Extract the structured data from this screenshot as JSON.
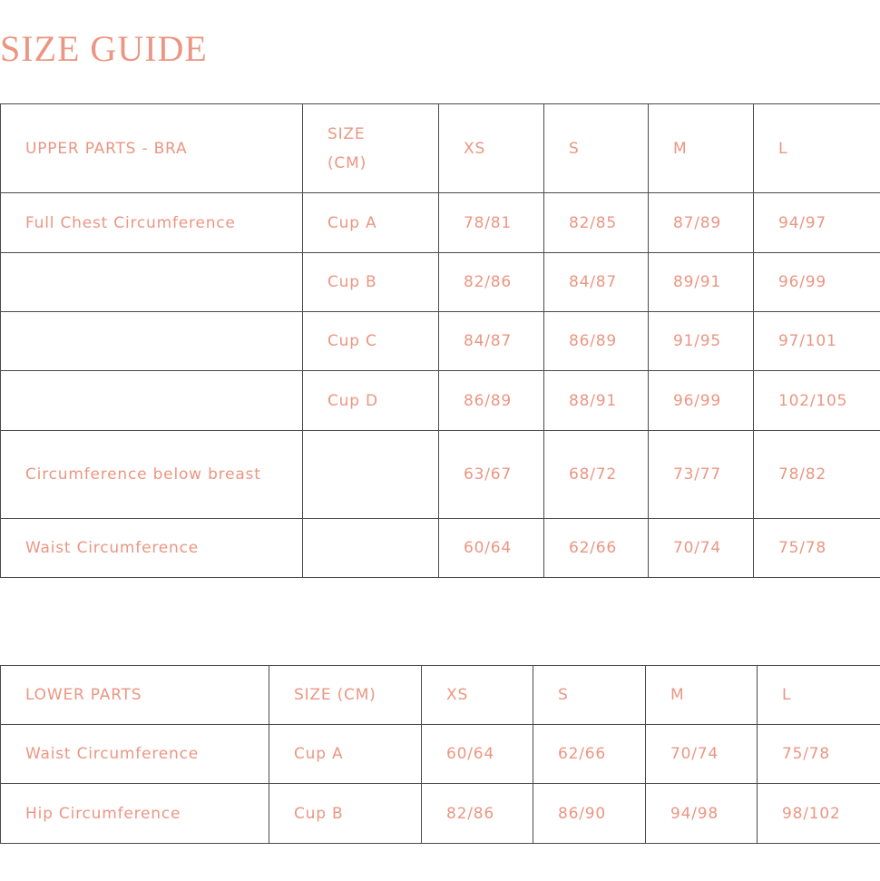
{
  "title": "SIZE GUIDE",
  "text_color": "#eb9682",
  "upper": {
    "headers": [
      "UPPER PARTS - BRA",
      "SIZE (CM)",
      "XS",
      "S",
      "M",
      "L"
    ],
    "rows": [
      [
        "Full Chest Circumference",
        "Cup A",
        "78/81",
        "82/85",
        "87/89",
        "94/97"
      ],
      [
        "",
        "Cup B",
        "82/86",
        "84/87",
        "89/91",
        "96/99"
      ],
      [
        "",
        "Cup C",
        "84/87",
        "86/89",
        "91/95",
        "97/101"
      ],
      [
        "",
        "Cup D",
        "86/89",
        "88/91",
        "96/99",
        "102/105"
      ],
      [
        "Circumference below breast",
        "",
        "63/67",
        "68/72",
        "73/77",
        "78/82"
      ],
      [
        "Waist Circumference",
        "",
        "60/64",
        "62/66",
        "70/74",
        "75/78"
      ]
    ]
  },
  "lower": {
    "headers": [
      "LOWER PARTS",
      "SIZE (CM)",
      "XS",
      "S",
      "M",
      "L"
    ],
    "rows": [
      [
        "Waist Circumference",
        "Cup A",
        "60/64",
        "62/66",
        "70/74",
        "75/78"
      ],
      [
        "Hip Circumference",
        "Cup B",
        "82/86",
        "86/90",
        "94/98",
        "98/102"
      ]
    ]
  }
}
